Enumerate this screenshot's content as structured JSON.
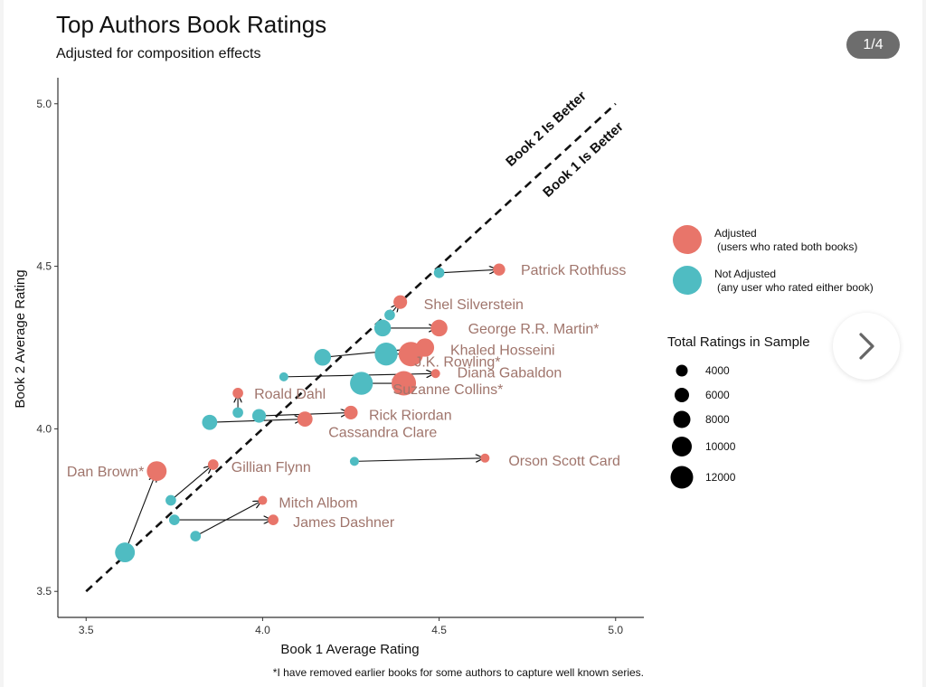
{
  "viewer": {
    "counter": "1/4",
    "next_icon": "chevron-right-icon"
  },
  "colors": {
    "adjusted": "#e8756a",
    "not_adjusted": "#4fbcc2",
    "label": "#a0756c"
  },
  "chart_data": {
    "type": "scatter",
    "title": "Top Authors Book Ratings",
    "subtitle": "Adjusted for composition effects",
    "xlabel": "Book 1 Average Rating",
    "ylabel": "Book 2 Average Rating",
    "xlim": [
      3.42,
      5.08
    ],
    "ylim": [
      3.42,
      5.08
    ],
    "xticks": [
      "3.5",
      "4.0",
      "4.5",
      "5.0"
    ],
    "yticks": [
      "3.5",
      "4.0",
      "4.5",
      "5.0"
    ],
    "grid": false,
    "reference_line": {
      "from": [
        3.5,
        3.5
      ],
      "to": [
        5.0,
        5.0
      ],
      "style": "dashed"
    },
    "region_labels": [
      "Book 2 Is Better",
      "Book 1 Is Better"
    ],
    "legend": {
      "placement": "right",
      "color_title": "",
      "color_entries": [
        {
          "name": "Adjusted",
          "note": "(users who rated both books)"
        },
        {
          "name": "Not Adjusted",
          "note": "(any user who rated either book)"
        }
      ],
      "size_title": "Total Ratings in Sample",
      "size_entries": [
        "4000",
        "6000",
        "8000",
        "10000",
        "12000"
      ]
    },
    "size_scale": [
      4000,
      12000
    ],
    "series": [
      {
        "author": "Patrick Rothfuss",
        "not_adjusted": {
          "x": 4.5,
          "y": 4.48,
          "n": 3000
        },
        "adjusted": {
          "x": 4.67,
          "y": 4.49,
          "n": 4000
        }
      },
      {
        "author": "Shel Silverstein",
        "not_adjusted": {
          "x": 4.36,
          "y": 4.35,
          "n": 3000
        },
        "adjusted": {
          "x": 4.39,
          "y": 4.39,
          "n": 5000
        }
      },
      {
        "author": "George R.R. Martin*",
        "not_adjusted": {
          "x": 4.34,
          "y": 4.31,
          "n": 7000
        },
        "adjusted": {
          "x": 4.5,
          "y": 4.31,
          "n": 7000
        }
      },
      {
        "author": "Khaled Hosseini",
        "not_adjusted": {
          "x": 4.17,
          "y": 4.22,
          "n": 7000
        },
        "adjusted": {
          "x": 4.46,
          "y": 4.25,
          "n": 8000
        }
      },
      {
        "author": "J.K. Rowling*",
        "not_adjusted": {
          "x": 4.35,
          "y": 4.23,
          "n": 11000
        },
        "adjusted": {
          "x": 4.42,
          "y": 4.23,
          "n": 12000
        }
      },
      {
        "author": "Diana Gabaldon",
        "not_adjusted": {
          "x": 4.06,
          "y": 4.16,
          "n": 2000
        },
        "adjusted": {
          "x": 4.49,
          "y": 4.17,
          "n": 2000
        }
      },
      {
        "author": "Suzanne Collins*",
        "not_adjusted": {
          "x": 4.28,
          "y": 4.14,
          "n": 11000
        },
        "adjusted": {
          "x": 4.4,
          "y": 4.14,
          "n": 12000
        }
      },
      {
        "author": "Roald Dahl",
        "not_adjusted": {
          "x": 3.93,
          "y": 4.05,
          "n": 3000
        },
        "adjusted": {
          "x": 3.93,
          "y": 4.11,
          "n": 3000
        }
      },
      {
        "author": "Rick Riordan",
        "not_adjusted": {
          "x": 3.99,
          "y": 4.04,
          "n": 5000
        },
        "adjusted": {
          "x": 4.25,
          "y": 4.05,
          "n": 5000
        }
      },
      {
        "author": "Cassandra Clare",
        "not_adjusted": {
          "x": 3.85,
          "y": 4.02,
          "n": 6000
        },
        "adjusted": {
          "x": 4.12,
          "y": 4.03,
          "n": 6000
        }
      },
      {
        "author": "Orson Scott Card",
        "not_adjusted": {
          "x": 4.26,
          "y": 3.9,
          "n": 2000
        },
        "adjusted": {
          "x": 4.63,
          "y": 3.91,
          "n": 2000
        }
      },
      {
        "author": "Dan Brown*",
        "not_adjusted": {
          "x": 3.61,
          "y": 3.62,
          "n": 9000
        },
        "adjusted": {
          "x": 3.7,
          "y": 3.87,
          "n": 9000
        }
      },
      {
        "author": "Gillian Flynn",
        "not_adjusted": {
          "x": 3.74,
          "y": 3.78,
          "n": 3000
        },
        "adjusted": {
          "x": 3.86,
          "y": 3.89,
          "n": 3000
        }
      },
      {
        "author": "Mitch Albom",
        "not_adjusted": {
          "x": 3.81,
          "y": 3.67,
          "n": 3000
        },
        "adjusted": {
          "x": 4.0,
          "y": 3.78,
          "n": 2000
        }
      },
      {
        "author": "James Dashner",
        "not_adjusted": {
          "x": 3.75,
          "y": 3.72,
          "n": 3000
        },
        "adjusted": {
          "x": 4.03,
          "y": 3.72,
          "n": 3000
        }
      }
    ],
    "footnote": "*I have removed earlier books for some authors to capture well known series."
  }
}
